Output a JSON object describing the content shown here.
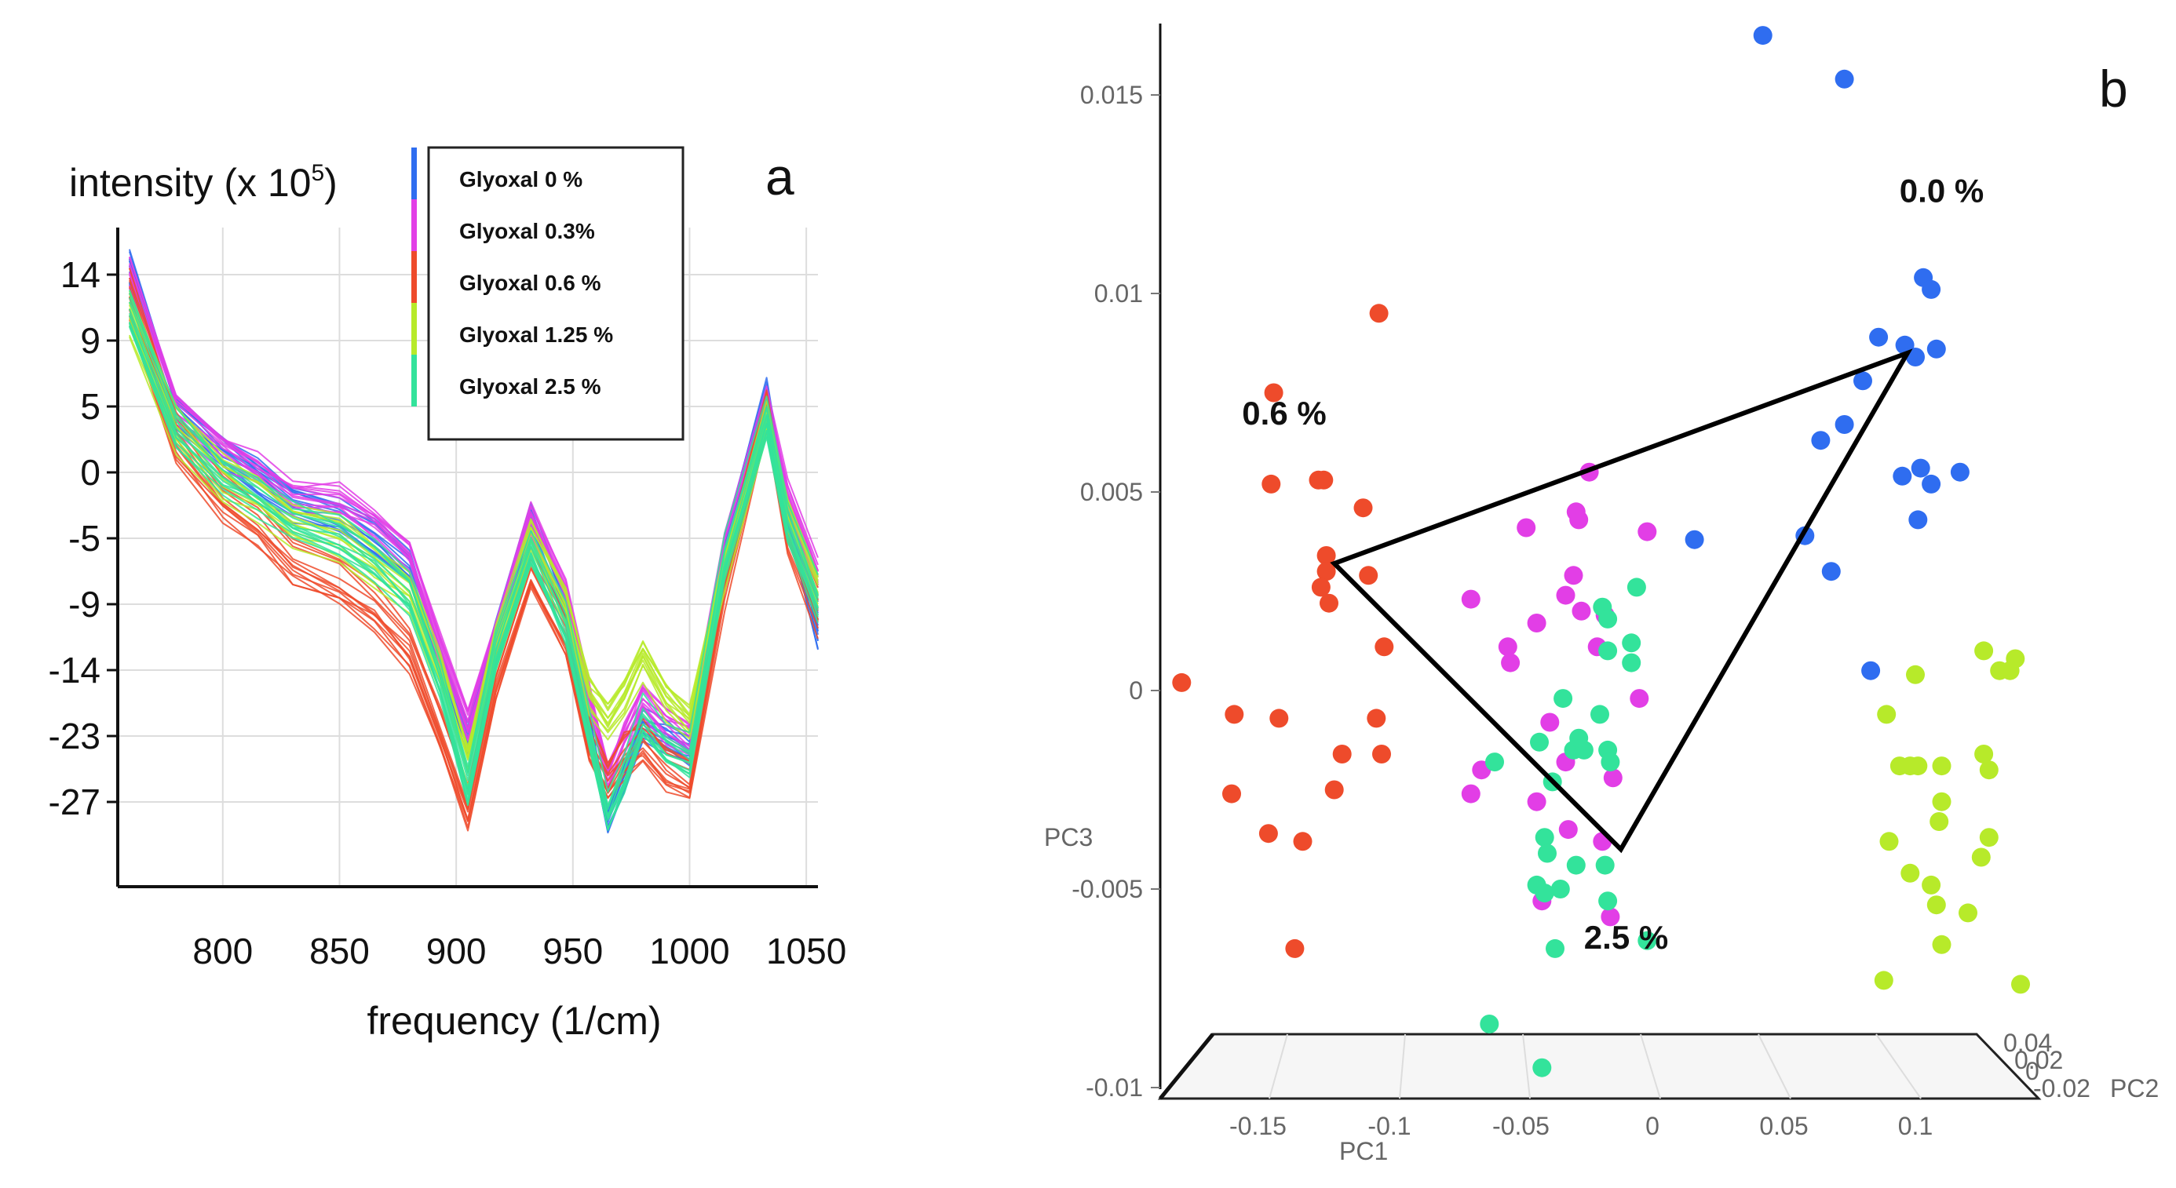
{
  "chart_data": [
    {
      "type": "line",
      "panel_label": "a",
      "title": "",
      "ylabel": "intensity (x 10",
      "ylabel_superscript": "5",
      "ylabel_close": ")",
      "xlabel": "frequency (1/cm)",
      "xlim": [
        755,
        1055
      ],
      "x_ticks": [
        "800",
        "850",
        "900",
        "950",
        "1000",
        "1050"
      ],
      "y_tick_labels": [
        "14",
        "9",
        "5",
        "0",
        "-5",
        "-9",
        "-14",
        "-23",
        "-27"
      ],
      "ylim": [
        -32,
        18
      ],
      "grid": true,
      "legend": [
        {
          "label": "Glyoxal 0 %",
          "color": "#2f6df0"
        },
        {
          "label": "Glyoxal 0.3%",
          "color": "#e23ee6"
        },
        {
          "label": "Glyoxal 0.6 %",
          "color": "#ee4b2b"
        },
        {
          "label": "Glyoxal 1.25 %",
          "color": "#b7ea2a"
        },
        {
          "label": "Glyoxal 2.5 %",
          "color": "#33e39b"
        }
      ],
      "x": [
        760,
        780,
        800,
        815,
        830,
        850,
        865,
        880,
        893,
        905,
        917,
        932,
        947,
        957,
        965,
        972,
        980,
        990,
        1000,
        1015,
        1033,
        1042,
        1055
      ],
      "series": [
        {
          "name": "Glyoxal 0 %",
          "values": [
            15,
            4,
            0.8,
            -1,
            -3,
            -3.8,
            -5.5,
            -8,
            -15,
            -21,
            -13,
            -4.5,
            -11,
            -20,
            -27,
            -24,
            -20,
            -21,
            -22,
            -7,
            5,
            -4,
            -13
          ]
        },
        {
          "name": "Glyoxal 0.3%",
          "values": [
            14.5,
            4,
            1,
            -0.5,
            -2.5,
            -2.8,
            -4.5,
            -7,
            -14,
            -20,
            -13,
            -4.5,
            -10,
            -18,
            -24,
            -21,
            -18,
            -20,
            -21,
            -7,
            4,
            -3,
            -9
          ]
        },
        {
          "name": "Glyoxal 0.6 %",
          "values": [
            13,
            2,
            -2.5,
            -4.5,
            -7.5,
            -9,
            -11,
            -14,
            -20,
            -26,
            -16,
            -8,
            -13,
            -21,
            -24,
            -22,
            -21,
            -23,
            -24,
            -9,
            4,
            -5,
            -11
          ]
        },
        {
          "name": "Glyoxal 1.25 %",
          "values": [
            11,
            2.5,
            -1.5,
            -3,
            -5,
            -6,
            -8,
            -10,
            -16,
            -23,
            -14,
            -6,
            -11,
            -18,
            -20,
            -18,
            -15,
            -18,
            -20,
            -8,
            3,
            -4,
            -10
          ]
        },
        {
          "name": "Glyoxal 2.5 %",
          "values": [
            12,
            3,
            -0.5,
            -2,
            -4,
            -5,
            -7,
            -9.5,
            -16,
            -24,
            -14,
            -6,
            -12,
            -20,
            -26,
            -23,
            -19,
            -21,
            -22,
            -7,
            4,
            -4,
            -10
          ]
        }
      ]
    },
    {
      "type": "scatter",
      "panel_label": "b",
      "ylabel": "PC3",
      "xlabel": "PC1",
      "zlabel": "PC2",
      "xlim": [
        -0.19,
        0.15
      ],
      "ylim": [
        -0.01,
        0.017
      ],
      "x_ticks": [
        "-0.15",
        "-0.1",
        "-0.05",
        "0",
        "0.05",
        "0.1"
      ],
      "y_ticks": [
        "0.015",
        "0.01",
        "0.005",
        "0",
        "-0.005",
        "-0.01"
      ],
      "z_ticks": [
        "0.04",
        "0.02",
        "0",
        "-0.02"
      ],
      "group_labels": [
        {
          "text": "0.0 %",
          "x": 0.11,
          "y": 0.0123
        },
        {
          "text": "0.6 %",
          "x": -0.14,
          "y": 0.0067
        },
        {
          "text": "2.5 %",
          "x": -0.01,
          "y": -0.0065
        }
      ],
      "triangle": [
        {
          "x": 0.097,
          "y": 0.0085
        },
        {
          "x": -0.121,
          "y": 0.0032
        },
        {
          "x": -0.012,
          "y": -0.004
        }
      ],
      "series": [
        {
          "name": "0.0 %",
          "color": "#2f6df0",
          "points": [
            [
              0.042,
              0.0165
            ],
            [
              0.073,
              0.0154
            ],
            [
              0.103,
              0.0104
            ],
            [
              0.106,
              0.0101
            ],
            [
              0.086,
              0.0089
            ],
            [
              0.096,
              0.0087
            ],
            [
              0.1,
              0.0084
            ],
            [
              0.108,
              0.0086
            ],
            [
              0.08,
              0.0078
            ],
            [
              0.073,
              0.0067
            ],
            [
              0.064,
              0.0063
            ],
            [
              0.095,
              0.0054
            ],
            [
              0.102,
              0.0056
            ],
            [
              0.106,
              0.0052
            ],
            [
              0.117,
              0.0055
            ],
            [
              0.101,
              0.0043
            ],
            [
              0.058,
              0.0039
            ],
            [
              0.016,
              0.0038
            ],
            [
              0.068,
              0.003
            ],
            [
              0.083,
              0.0005
            ]
          ]
        },
        {
          "name": "0.3 %",
          "color": "#e23ee6",
          "points": [
            [
              -0.024,
              0.0055
            ],
            [
              -0.028,
              0.0043
            ],
            [
              -0.029,
              0.0045
            ],
            [
              -0.048,
              0.0041
            ],
            [
              -0.002,
              0.004
            ],
            [
              -0.03,
              0.0029
            ],
            [
              -0.069,
              0.0023
            ],
            [
              -0.033,
              0.0024
            ],
            [
              -0.027,
              0.002
            ],
            [
              -0.018,
              0.0019
            ],
            [
              -0.044,
              0.0017
            ],
            [
              -0.055,
              0.0011
            ],
            [
              -0.021,
              0.0011
            ],
            [
              -0.054,
              0.0007
            ],
            [
              -0.005,
              -0.0002
            ],
            [
              -0.039,
              -0.0008
            ],
            [
              -0.065,
              -0.002
            ],
            [
              -0.033,
              -0.0018
            ],
            [
              -0.015,
              -0.0022
            ],
            [
              -0.069,
              -0.0026
            ],
            [
              -0.044,
              -0.0028
            ],
            [
              -0.032,
              -0.0035
            ],
            [
              -0.019,
              -0.0038
            ],
            [
              -0.042,
              -0.0053
            ],
            [
              -0.016,
              -0.0057
            ]
          ]
        },
        {
          "name": "0.6 %",
          "color": "#ee4b2b",
          "points": [
            [
              -0.104,
              0.0095
            ],
            [
              -0.144,
              0.0075
            ],
            [
              -0.145,
              0.0052
            ],
            [
              -0.127,
              0.0053
            ],
            [
              -0.125,
              0.0053
            ],
            [
              -0.11,
              0.0046
            ],
            [
              -0.124,
              0.0034
            ],
            [
              -0.124,
              0.003
            ],
            [
              -0.108,
              0.0029
            ],
            [
              -0.126,
              0.0026
            ],
            [
              -0.123,
              0.0022
            ],
            [
              -0.102,
              0.0011
            ],
            [
              -0.179,
              0.0002
            ],
            [
              -0.159,
              -0.0006
            ],
            [
              -0.142,
              -0.0007
            ],
            [
              -0.105,
              -0.0007
            ],
            [
              -0.118,
              -0.0016
            ],
            [
              -0.103,
              -0.0016
            ],
            [
              -0.16,
              -0.0026
            ],
            [
              -0.121,
              -0.0025
            ],
            [
              -0.146,
              -0.0036
            ],
            [
              -0.133,
              -0.0038
            ],
            [
              -0.136,
              -0.0065
            ]
          ]
        },
        {
          "name": "1.25 %",
          "color": "#b7ea2a",
          "points": [
            [
              0.126,
              0.001
            ],
            [
              0.138,
              0.0008
            ],
            [
              0.132,
              0.0005
            ],
            [
              0.136,
              0.0005
            ],
            [
              0.1,
              0.0004
            ],
            [
              0.089,
              -0.0006
            ],
            [
              0.126,
              -0.0016
            ],
            [
              0.128,
              -0.002
            ],
            [
              0.101,
              -0.0019
            ],
            [
              0.094,
              -0.0019
            ],
            [
              0.11,
              -0.0019
            ],
            [
              0.098,
              -0.0019
            ],
            [
              0.11,
              -0.0028
            ],
            [
              0.109,
              -0.0033
            ],
            [
              0.09,
              -0.0038
            ],
            [
              0.128,
              -0.0037
            ],
            [
              0.125,
              -0.0042
            ],
            [
              0.098,
              -0.0046
            ],
            [
              0.106,
              -0.0049
            ],
            [
              0.108,
              -0.0054
            ],
            [
              0.12,
              -0.0056
            ],
            [
              0.11,
              -0.0064
            ],
            [
              0.088,
              -0.0073
            ],
            [
              0.14,
              -0.0074
            ]
          ]
        },
        {
          "name": "2.5 %",
          "color": "#33e39b",
          "points": [
            [
              -0.006,
              0.0026
            ],
            [
              -0.019,
              0.0021
            ],
            [
              -0.017,
              0.0018
            ],
            [
              -0.008,
              0.0012
            ],
            [
              -0.017,
              0.001
            ],
            [
              -0.008,
              0.0007
            ],
            [
              -0.034,
              -0.0002
            ],
            [
              -0.02,
              -0.0006
            ],
            [
              -0.043,
              -0.0013
            ],
            [
              -0.017,
              -0.0015
            ],
            [
              -0.03,
              -0.0015
            ],
            [
              -0.026,
              -0.0015
            ],
            [
              -0.028,
              -0.0012
            ],
            [
              -0.06,
              -0.0018
            ],
            [
              -0.038,
              -0.0023
            ],
            [
              -0.016,
              -0.0018
            ],
            [
              -0.041,
              -0.0037
            ],
            [
              -0.04,
              -0.0041
            ],
            [
              -0.018,
              -0.0044
            ],
            [
              -0.029,
              -0.0044
            ],
            [
              -0.044,
              -0.0049
            ],
            [
              -0.035,
              -0.005
            ],
            [
              -0.041,
              -0.0051
            ],
            [
              -0.017,
              -0.0053
            ],
            [
              -0.037,
              -0.0065
            ],
            [
              -0.002,
              -0.0063
            ],
            [
              -0.062,
              -0.0084
            ],
            [
              -0.042,
              -0.0095
            ]
          ]
        }
      ]
    }
  ]
}
